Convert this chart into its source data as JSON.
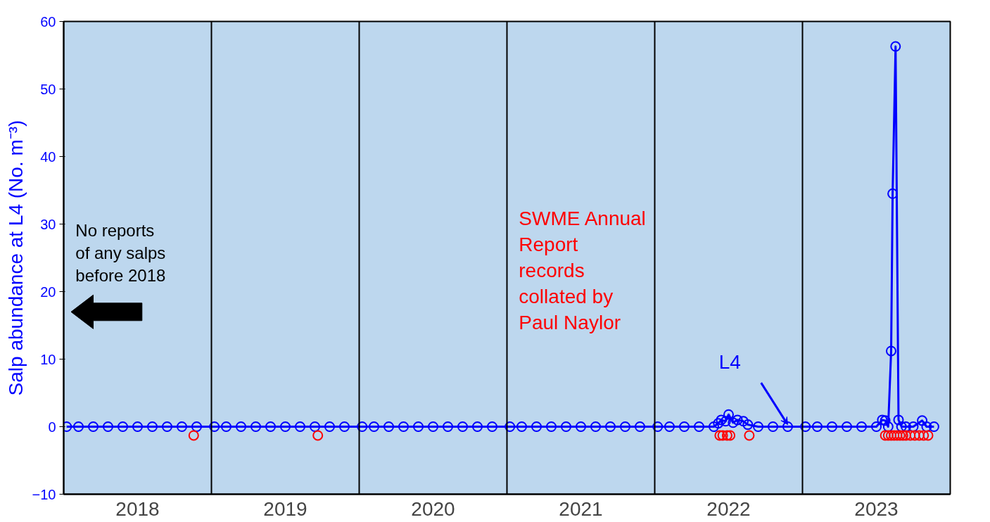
{
  "chart_data": {
    "type": "line",
    "ylabel": "Salp abundance at L4 (No. m⁻³)",
    "xlim": [
      2018,
      2024
    ],
    "ylim": [
      -10,
      60
    ],
    "yticks": [
      -10,
      0,
      10,
      20,
      30,
      40,
      50,
      60
    ],
    "xticks": [
      {
        "value": 2018.5,
        "label": "2018"
      },
      {
        "value": 2019.5,
        "label": "2019"
      },
      {
        "value": 2020.5,
        "label": "2020"
      },
      {
        "value": 2021.5,
        "label": "2021"
      },
      {
        "value": 2022.5,
        "label": "2022"
      },
      {
        "value": 2023.5,
        "label": "2023"
      }
    ],
    "series": [
      {
        "name": "L4",
        "color": "#0000ff",
        "marker": "circle",
        "x": [
          2018.02,
          2018.1,
          2018.2,
          2018.3,
          2018.4,
          2018.5,
          2018.6,
          2018.7,
          2018.8,
          2018.9,
          2019.02,
          2019.1,
          2019.2,
          2019.3,
          2019.4,
          2019.5,
          2019.6,
          2019.7,
          2019.8,
          2019.9,
          2020.02,
          2020.1,
          2020.2,
          2020.3,
          2020.4,
          2020.5,
          2020.6,
          2020.7,
          2020.8,
          2020.9,
          2021.02,
          2021.1,
          2021.2,
          2021.3,
          2021.4,
          2021.5,
          2021.6,
          2021.7,
          2021.8,
          2021.9,
          2022.02,
          2022.1,
          2022.2,
          2022.3,
          2022.4,
          2022.43,
          2022.45,
          2022.48,
          2022.5,
          2022.53,
          2022.56,
          2022.6,
          2022.63,
          2022.7,
          2022.8,
          2022.9,
          2023.02,
          2023.1,
          2023.2,
          2023.3,
          2023.4,
          2023.5,
          2023.54,
          2023.56,
          2023.58,
          2023.6,
          2023.61,
          2023.63,
          2023.65,
          2023.67,
          2023.7,
          2023.75,
          2023.81,
          2023.84,
          2023.89
        ],
        "values": [
          0,
          0,
          0,
          0,
          0,
          0,
          0,
          0,
          0,
          0,
          0,
          0,
          0,
          0,
          0,
          0,
          0,
          0,
          0,
          0,
          0,
          0,
          0,
          0,
          0,
          0,
          0,
          0,
          0,
          0,
          0,
          0,
          0,
          0,
          0,
          0,
          0,
          0,
          0,
          0,
          0,
          0,
          0,
          0,
          0,
          0.5,
          1.0,
          0.8,
          1.8,
          0.6,
          1.0,
          0.8,
          0.3,
          0,
          0,
          0,
          0,
          0,
          0,
          0,
          0,
          0,
          1.0,
          0.9,
          0,
          11.2,
          34.5,
          56.3,
          1.0,
          0,
          0,
          0,
          0.9,
          0,
          0
        ]
      },
      {
        "name": "SWME Annual Report records collated by Paul Naylor",
        "type": "scatter",
        "color": "#ff0000",
        "marker": "circle",
        "x": [
          2018.88,
          2019.72,
          2022.44,
          2022.46,
          2022.49,
          2022.51,
          2022.64,
          2023.56,
          2023.58,
          2023.6,
          2023.62,
          2023.64,
          2023.66,
          2023.68,
          2023.7,
          2023.73,
          2023.76,
          2023.79,
          2023.82,
          2023.85
        ],
        "values": [
          -1.3,
          -1.3,
          -1.3,
          -1.3,
          -1.3,
          -1.3,
          -1.3,
          -1.3,
          -1.3,
          -1.3,
          -1.3,
          -1.3,
          -1.3,
          -1.3,
          -1.3,
          -1.3,
          -1.3,
          -1.3,
          -1.3,
          -1.3
        ]
      }
    ],
    "ref_lines": [
      {
        "axis": "x",
        "value": 2019,
        "color": "#000000"
      },
      {
        "axis": "x",
        "value": 2020,
        "color": "#000000"
      },
      {
        "axis": "x",
        "value": 2021,
        "color": "#000000"
      },
      {
        "axis": "x",
        "value": 2022,
        "color": "#000000"
      },
      {
        "axis": "x",
        "value": 2023,
        "color": "#000000"
      }
    ],
    "annotations": [
      "No reports of any salps before 2018"
    ],
    "grid": false,
    "legend": false
  }
}
